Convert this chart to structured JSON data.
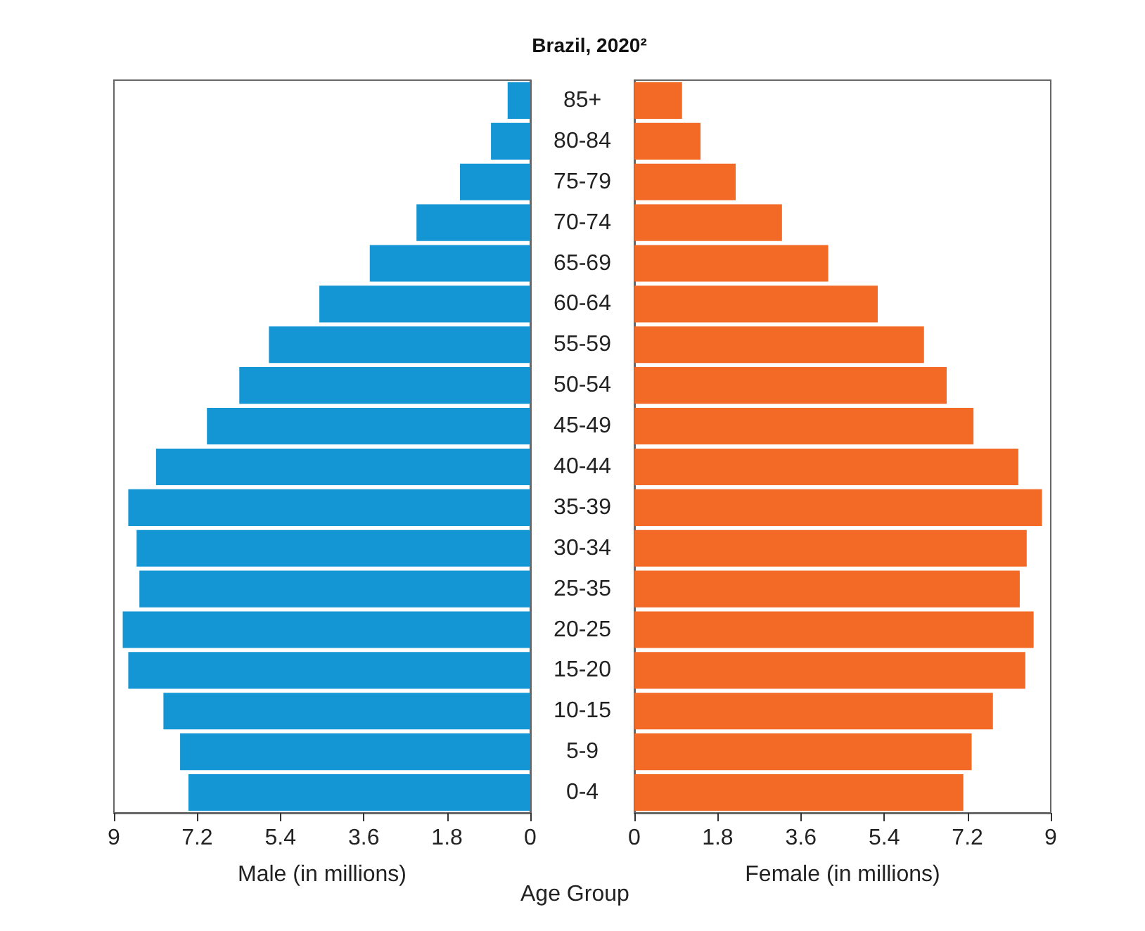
{
  "chart_data": [
    {
      "type": "bar",
      "orientation": "horizontal",
      "title": "Brazil, 2020²",
      "xlabel": "Male (in millions)",
      "ylabel": "Age Group",
      "categories": [
        "85+",
        "80-84",
        "75-79",
        "70-74",
        "65-69",
        "60-64",
        "55-59",
        "50-54",
        "45-49",
        "40-44",
        "35-39",
        "30-34",
        "25-35",
        "20-25",
        "15-20",
        "10-15",
        "5-9",
        "0-4"
      ],
      "values": [
        0.49,
        0.85,
        1.52,
        2.46,
        3.47,
        4.56,
        5.65,
        6.29,
        6.99,
        8.09,
        8.69,
        8.51,
        8.45,
        8.81,
        8.69,
        7.93,
        7.57,
        7.39
      ],
      "color": "#1596d4",
      "xlim": [
        9,
        0
      ],
      "xticks": [
        9,
        7.2,
        5.4,
        3.6,
        1.8,
        0
      ],
      "grid": false
    },
    {
      "type": "bar",
      "orientation": "horizontal",
      "xlabel": "Female (in millions)",
      "categories": [
        null,
        null,
        null,
        null,
        null,
        null,
        null,
        null,
        null,
        null,
        null,
        null,
        null,
        null,
        null,
        null,
        null,
        null
      ],
      "values": [
        1.03,
        1.43,
        2.19,
        3.19,
        4.19,
        5.26,
        6.26,
        6.75,
        7.33,
        8.3,
        8.81,
        8.48,
        8.33,
        8.63,
        8.45,
        7.75,
        7.29,
        7.11
      ],
      "color": "#f26a25",
      "xlim": [
        0,
        9
      ],
      "xticks": [
        0,
        1.8,
        3.6,
        5.4,
        7.2,
        9
      ],
      "tick_labels": "x",
      "grid": false
    }
  ]
}
